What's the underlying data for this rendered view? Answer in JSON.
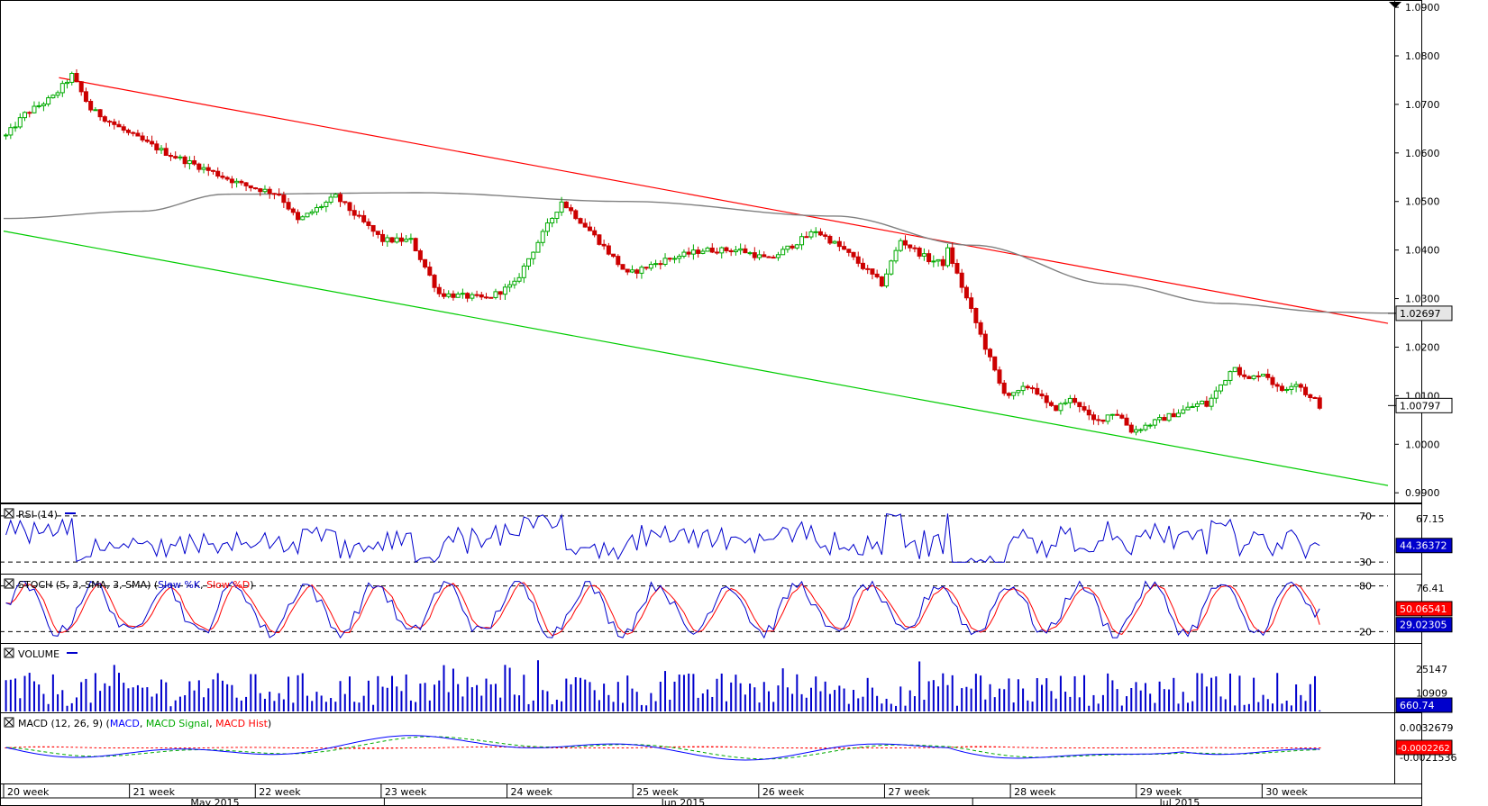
{
  "chart_data": {
    "type": "candlestick",
    "main": {
      "yticks": [
        "1.0900",
        "1.0800",
        "1.0700",
        "1.0600",
        "1.0500",
        "1.0400",
        "1.0300",
        "1.0200",
        "1.0100",
        "1.0000",
        "0.9900"
      ],
      "ylim": [
        0.988,
        1.0915
      ],
      "ma_label": "1.02697",
      "last_label": "1.00797",
      "ma_value": 1.02697,
      "last_value": 1.00797,
      "candle_count": 280,
      "ohlc_anchors": [
        [
          0,
          1.0635
        ],
        [
          4,
          1.068
        ],
        [
          10,
          1.0715
        ],
        [
          14,
          1.076
        ],
        [
          18,
          1.069
        ],
        [
          26,
          1.064
        ],
        [
          34,
          1.06
        ],
        [
          44,
          1.056
        ],
        [
          50,
          1.0535
        ],
        [
          58,
          1.0515
        ],
        [
          62,
          1.046
        ],
        [
          70,
          1.051
        ],
        [
          80,
          1.042
        ],
        [
          86,
          1.042
        ],
        [
          92,
          1.031
        ],
        [
          102,
          1.03
        ],
        [
          108,
          1.033
        ],
        [
          112,
          1.04
        ],
        [
          118,
          1.05
        ],
        [
          124,
          1.044
        ],
        [
          132,
          1.035
        ],
        [
          140,
          1.038
        ],
        [
          148,
          1.04
        ],
        [
          156,
          1.04
        ],
        [
          162,
          1.038
        ],
        [
          172,
          1.044
        ],
        [
          178,
          1.04
        ],
        [
          186,
          1.033
        ],
        [
          190,
          1.042
        ],
        [
          196,
          1.038
        ],
        [
          204,
          1.036
        ],
        [
          212,
          1.04
        ],
        [
          220,
          1.038
        ],
        [
          232,
          1.033
        ],
        [
          238,
          1.036
        ],
        [
          244,
          1.037
        ],
        [
          252,
          1.039
        ],
        [
          256,
          1.035
        ],
        [
          262,
          1.04
        ],
        [
          268,
          1.033
        ],
        [
          272,
          1.027
        ],
        [
          280,
          1.014
        ]
      ],
      "trend_upper": [
        [
          0.04,
          1.0755
        ],
        [
          1.0,
          1.0249
        ]
      ],
      "trend_lower": [
        [
          0.0,
          1.0439
        ],
        [
          1.0,
          0.9915
        ]
      ],
      "ma_line": [
        [
          0.0,
          1.0465
        ],
        [
          0.1,
          1.048
        ],
        [
          0.16,
          1.0515
        ],
        [
          0.3,
          1.0518
        ],
        [
          0.45,
          1.05
        ],
        [
          0.6,
          1.047
        ],
        [
          0.7,
          1.041
        ],
        [
          0.8,
          1.033
        ],
        [
          0.88,
          1.029
        ],
        [
          0.96,
          1.0272
        ],
        [
          1.0,
          1.027
        ]
      ]
    },
    "rsi": {
      "label": "RSI (14)",
      "levels": [
        "70",
        "30"
      ],
      "value_label": "44.36372",
      "top_label": "67.15",
      "ylim": [
        20,
        80
      ]
    },
    "stoch": {
      "label": "STOCH (5, 3, SMA, 3, SMA) (Slow %K, Slow %D)",
      "levels": [
        "80",
        "20"
      ],
      "top_label": "76.41",
      "k_label": "50.06541",
      "d_label": "29.02305",
      "ylim": [
        5,
        95
      ]
    },
    "volume": {
      "label": "VOLUME",
      "ticks": [
        "25147",
        "10909"
      ],
      "value_label": "660.74",
      "ylim": [
        0,
        40000
      ]
    },
    "macd": {
      "label": "MACD (12, 26, 9) (MACD, MACD Signal, MACD Hist)",
      "ticks": [
        "0.0032679",
        "-0.0021536"
      ],
      "value_label": "-0.0002262"
    },
    "xaxis": {
      "weeks": [
        "20 week",
        "21 week",
        "22 week",
        "23 week",
        "24 week",
        "25 week",
        "26 week",
        "27 week",
        "28 week",
        "29 week",
        "30 week"
      ],
      "months": [
        "May 2015",
        "Jun 2015",
        "Jul 2015"
      ]
    },
    "colors": {
      "up": "#00aa00",
      "down": "#cc0000",
      "trend_upper": "#ff0000",
      "trend_lower": "#00cc00",
      "ma": "#808080",
      "rsi": "#0000cc",
      "stoch_k": "#0000cc",
      "stoch_d": "#ff0000",
      "volume": "#0000cc",
      "macd": "#0000ff",
      "signal": "#00aa00",
      "hist": "#ff0000",
      "value_box": "#0000cc"
    }
  }
}
